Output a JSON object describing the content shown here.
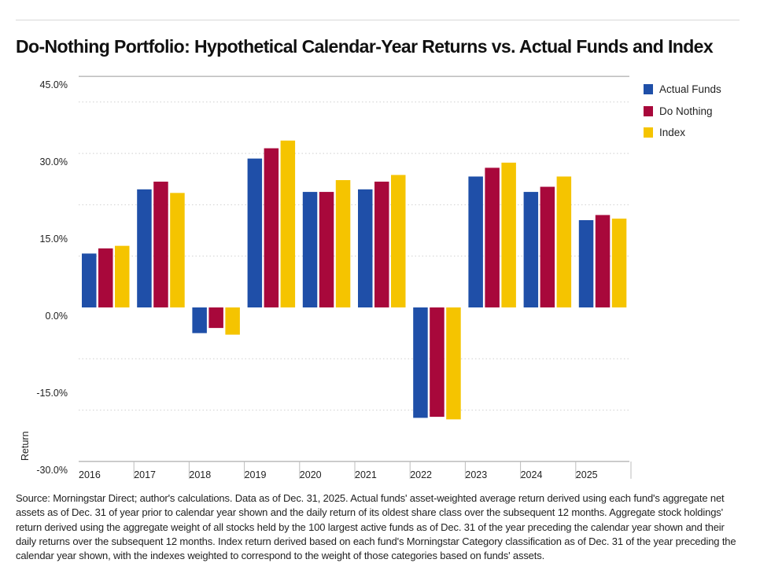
{
  "title": "Do-Nothing Portfolio: Hypothetical Calendar-Year Returns vs. Actual Funds and Index",
  "source_note": "Source: Morningstar Direct; author's calculations. Data as of Dec. 31, 2025. Actual funds' asset-weighted average return derived using each fund's aggregate net assets as of Dec. 31 of year prior to calendar year shown and the daily return of its oldest share class over the subsequent 12 months. Aggregate stock holdings' return derived using the aggregate weight of all stocks held by the 100 largest active funds as of Dec. 31 of the year preceding the calendar year shown and their daily returns over the subsequent 12 months. Index return derived based on each fund's Morningstar Category classification as of Dec. 31 of the year preceding the calendar year shown, with the indexes weighted to correspond to the weight of those categories based on funds' assets.",
  "chart_data": {
    "type": "bar",
    "title": "Do-Nothing Portfolio: Hypothetical Calendar-Year Returns vs. Actual Funds and Index",
    "xlabel": "",
    "ylabel": "Return",
    "ylim": [
      -30,
      45
    ],
    "yticks": [
      45,
      30,
      15,
      0,
      -15,
      -30
    ],
    "ytick_labels": [
      "45.0%",
      "30.0%",
      "15.0%",
      "0.0%",
      "-15.0%",
      "-30.0%"
    ],
    "grid": true,
    "legend_position": "top-right",
    "categories": [
      "2016",
      "2017",
      "2018",
      "2019",
      "2020",
      "2021",
      "2022",
      "2023",
      "2024",
      "2025"
    ],
    "series": [
      {
        "name": "Actual Funds",
        "color": "#1f4fa8",
        "values": [
          10.5,
          23.0,
          -5.0,
          29.0,
          22.5,
          23.0,
          -21.5,
          25.5,
          22.5,
          17.0
        ]
      },
      {
        "name": "Do Nothing",
        "color": "#a8083b",
        "values": [
          11.5,
          24.5,
          -4.0,
          31.0,
          22.5,
          24.5,
          -21.3,
          27.2,
          23.5,
          18.0
        ]
      },
      {
        "name": "Index",
        "color": "#f5c400",
        "values": [
          12.0,
          22.3,
          -5.3,
          32.5,
          24.8,
          25.8,
          -21.8,
          28.2,
          25.5,
          17.3
        ]
      }
    ]
  }
}
